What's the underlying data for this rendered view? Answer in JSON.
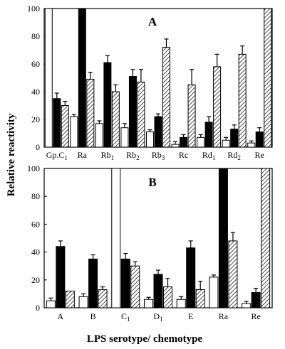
{
  "figure": {
    "ylabel": "Relative reactivity",
    "xlabel": "LPS serotype/ chemotype"
  },
  "legend_colors": {
    "white": "#ffffff",
    "black": "#000000",
    "hatched_stroke": "#000000"
  },
  "chart_data": [
    {
      "type": "bar",
      "panel_label": "A",
      "ylim": [
        0,
        100
      ],
      "yticks": [
        "0",
        "20",
        "40",
        "60",
        "80",
        "100"
      ],
      "categories": [
        {
          "base": "Gp.C",
          "sub": "1"
        },
        {
          "base": "Ra",
          "sub": ""
        },
        {
          "base": "Rb",
          "sub": "1"
        },
        {
          "base": "Rb",
          "sub": "2"
        },
        {
          "base": "Rb",
          "sub": "3"
        },
        {
          "base": "Rc",
          "sub": ""
        },
        {
          "base": "Rd",
          "sub": "1"
        },
        {
          "base": "Rd",
          "sub": "2"
        },
        {
          "base": "Re",
          "sub": ""
        }
      ],
      "series": [
        {
          "style": "white",
          "values": [
            100,
            22,
            17,
            14,
            11,
            2,
            7,
            5,
            3
          ],
          "errors": [
            0,
            1.5,
            2,
            3,
            1.5,
            2,
            2,
            2,
            1.5
          ]
        },
        {
          "style": "black",
          "values": [
            35,
            100,
            61,
            51,
            22,
            7,
            18,
            13,
            11
          ],
          "errors": [
            4,
            0,
            5,
            5,
            2,
            2,
            4,
            3,
            3
          ]
        },
        {
          "style": "hatched",
          "values": [
            30,
            49,
            40,
            47,
            72,
            45,
            58,
            67,
            100
          ],
          "errors": [
            3,
            5,
            5,
            9,
            6,
            11,
            9,
            6,
            0
          ]
        }
      ]
    },
    {
      "type": "bar",
      "panel_label": "B",
      "ylim": [
        0,
        100
      ],
      "yticks": [
        "0",
        "20",
        "40",
        "60",
        "80",
        "100"
      ],
      "categories": [
        {
          "base": "A",
          "sub": ""
        },
        {
          "base": "B",
          "sub": ""
        },
        {
          "base": "C",
          "sub": "1"
        },
        {
          "base": "D",
          "sub": "1"
        },
        {
          "base": "E",
          "sub": ""
        },
        {
          "base": "Ra",
          "sub": ""
        },
        {
          "base": "Re",
          "sub": ""
        }
      ],
      "series": [
        {
          "style": "white",
          "values": [
            5,
            8,
            100,
            6,
            6,
            22,
            3
          ],
          "errors": [
            2,
            2,
            0,
            1.5,
            2,
            1.5,
            1.5
          ]
        },
        {
          "style": "black",
          "values": [
            44,
            35,
            35,
            24,
            43,
            100,
            11
          ],
          "errors": [
            4,
            3,
            4,
            3,
            5,
            0,
            3
          ]
        },
        {
          "style": "hatched",
          "values": [
            12,
            13,
            30,
            15,
            13,
            48,
            100
          ],
          "errors": [
            0,
            2,
            3,
            6,
            6,
            6,
            0
          ]
        }
      ]
    }
  ]
}
